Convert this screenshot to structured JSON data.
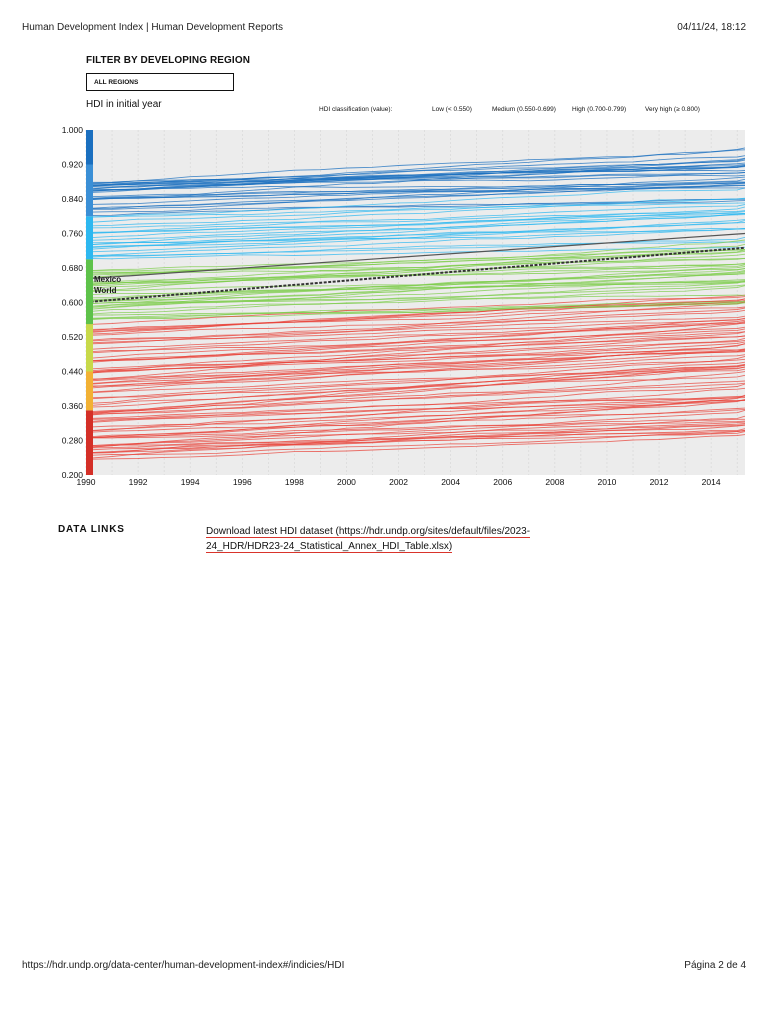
{
  "header": {
    "title": "Human Development Index | Human Development Reports",
    "datetime": "04/11/24, 18:12"
  },
  "filter": {
    "title": "FILTER BY DEVELOPING REGION",
    "selected": "ALL REGIONS"
  },
  "hdi_initial_label": "HDI in initial year",
  "legend": {
    "title": "HDI classification (value):",
    "items": [
      {
        "label": "Low (< 0.550)",
        "color": "#e8453c"
      },
      {
        "label": "Medium (0.550-0.699)",
        "color": "#7ccc4a"
      },
      {
        "label": "High (0.700-0.799)",
        "color": "#2db8f0"
      },
      {
        "label": "Very high (≥ 0.800)",
        "color": "#1a6fbf"
      }
    ]
  },
  "chart_data": {
    "type": "line",
    "title": "",
    "xlabel": "",
    "ylabel": "",
    "xlim": [
      1990,
      2015.3
    ],
    "ylim": [
      0.2,
      1.0
    ],
    "x_ticks": [
      "1990",
      "1992",
      "1994",
      "1996",
      "1998",
      "2000",
      "2002",
      "2004",
      "2006",
      "2008",
      "2010",
      "2012",
      "2014"
    ],
    "y_ticks": [
      "1.000",
      "0.920",
      "0.840",
      "0.760",
      "0.680",
      "0.600",
      "0.520",
      "0.440",
      "0.360",
      "0.280",
      "0.200"
    ],
    "grid": true,
    "highlighted_series": [
      {
        "name": "World",
        "x_start": 1990,
        "y_start": 0.601,
        "x_end": 2015.3,
        "y_end": 0.727
      },
      {
        "name": "Mexico",
        "x_start": 1990,
        "y_start": 0.655,
        "x_end": 2015.3,
        "y_end": 0.76
      }
    ],
    "colors": {
      "low": "#e8453c",
      "medium": "#7ccc4a",
      "high": "#2db8f0",
      "very_high": "#1a6fbf",
      "world": "#333333",
      "grid_band": "#ececec"
    }
  },
  "data_links": {
    "label": "DATA LINKS",
    "link_text": "Download latest HDI dataset (https://hdr.undp.org/sites/default/files/2023-24_HDR/HDR23-24_Statistical_Annex_HDI_Table.xlsx)"
  },
  "footer": {
    "url": "https://hdr.undp.org/data-center/human-development-index#/indicies/HDI",
    "page": "Página 2 de 4"
  }
}
